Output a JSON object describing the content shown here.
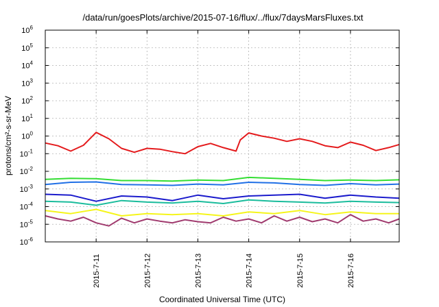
{
  "chart_data": {
    "type": "line",
    "title": "/data/run/goesPlots/archive/2015-07-16/flux/../flux/7daysMarsFluxes.txt",
    "xlabel": "Coordinated Universal Time (UTC)",
    "ylabel": "protons/cm²-s-sr-MeV",
    "x_domain": [
      "2015-07-10 00:00",
      "2015-07-16 23:00"
    ],
    "x_ticks": [
      "2015-7-11",
      "2015-7-12",
      "2015-7-13",
      "2015-7-14",
      "2015-7-15",
      "2015-7-16"
    ],
    "y_scale": "log",
    "ylim": [
      1e-06,
      1000000.0
    ],
    "y_ticks": [
      {
        "base": "10",
        "exp": "-6"
      },
      {
        "base": "10",
        "exp": "-5"
      },
      {
        "base": "10",
        "exp": "-4"
      },
      {
        "base": "10",
        "exp": "-3"
      },
      {
        "base": "10",
        "exp": "-2"
      },
      {
        "base": "10",
        "exp": "-1"
      },
      {
        "base": "10",
        "exp": "0"
      },
      {
        "base": "10",
        "exp": "1"
      },
      {
        "base": "10",
        "exp": "2"
      },
      {
        "base": "10",
        "exp": "3"
      },
      {
        "base": "10",
        "exp": "4"
      },
      {
        "base": "10",
        "exp": "5"
      },
      {
        "base": "10",
        "exp": "6"
      }
    ],
    "grid": true,
    "series": [
      {
        "color": "#e41a1c",
        "x": [
          "2015-07-10 00:00",
          "2015-07-10 06:00",
          "2015-07-10 12:00",
          "2015-07-10 18:00",
          "2015-07-11 00:00",
          "2015-07-11 06:00",
          "2015-07-11 12:00",
          "2015-07-11 18:00",
          "2015-07-12 00:00",
          "2015-07-12 06:00",
          "2015-07-12 12:00",
          "2015-07-12 18:00",
          "2015-07-13 00:00",
          "2015-07-13 06:00",
          "2015-07-13 12:00",
          "2015-07-13 18:00",
          "2015-07-13 20:00",
          "2015-07-14 00:00",
          "2015-07-14 06:00",
          "2015-07-14 12:00",
          "2015-07-14 18:00",
          "2015-07-15 00:00",
          "2015-07-15 06:00",
          "2015-07-15 12:00",
          "2015-07-15 18:00",
          "2015-07-16 00:00",
          "2015-07-16 06:00",
          "2015-07-16 12:00",
          "2015-07-16 18:00",
          "2015-07-16 23:00"
        ],
        "y": [
          0.4,
          0.28,
          0.14,
          0.3,
          1.6,
          0.7,
          0.2,
          0.12,
          0.2,
          0.18,
          0.13,
          0.1,
          0.25,
          0.38,
          0.22,
          0.14,
          0.6,
          1.5,
          1.0,
          0.75,
          0.5,
          0.7,
          0.5,
          0.28,
          0.22,
          0.45,
          0.3,
          0.15,
          0.22,
          0.33
        ]
      },
      {
        "color": "#33dd33",
        "x": [
          "2015-07-10 00:00",
          "2015-07-10 12:00",
          "2015-07-11 00:00",
          "2015-07-11 12:00",
          "2015-07-12 00:00",
          "2015-07-12 12:00",
          "2015-07-13 00:00",
          "2015-07-13 12:00",
          "2015-07-14 00:00",
          "2015-07-14 12:00",
          "2015-07-15 00:00",
          "2015-07-15 12:00",
          "2015-07-16 00:00",
          "2015-07-16 12:00",
          "2015-07-16 23:00"
        ],
        "y": [
          0.0035,
          0.004,
          0.0038,
          0.003,
          0.003,
          0.0028,
          0.0032,
          0.003,
          0.0045,
          0.004,
          0.0035,
          0.003,
          0.0032,
          0.003,
          0.0033
        ]
      },
      {
        "color": "#1f6fe6",
        "x": [
          "2015-07-10 00:00",
          "2015-07-10 12:00",
          "2015-07-11 00:00",
          "2015-07-11 12:00",
          "2015-07-12 00:00",
          "2015-07-12 12:00",
          "2015-07-13 00:00",
          "2015-07-13 12:00",
          "2015-07-14 00:00",
          "2015-07-14 12:00",
          "2015-07-15 00:00",
          "2015-07-15 12:00",
          "2015-07-16 00:00",
          "2015-07-16 12:00",
          "2015-07-16 23:00"
        ],
        "y": [
          0.0018,
          0.0024,
          0.0025,
          0.0018,
          0.0017,
          0.0016,
          0.0019,
          0.0017,
          0.0024,
          0.0022,
          0.0018,
          0.0016,
          0.002,
          0.0017,
          0.0019
        ]
      },
      {
        "color": "#1a1acc",
        "x": [
          "2015-07-10 00:00",
          "2015-07-10 12:00",
          "2015-07-11 00:00",
          "2015-07-11 12:00",
          "2015-07-12 00:00",
          "2015-07-12 12:00",
          "2015-07-13 00:00",
          "2015-07-13 12:00",
          "2015-07-14 00:00",
          "2015-07-14 12:00",
          "2015-07-15 00:00",
          "2015-07-15 12:00",
          "2015-07-16 00:00",
          "2015-07-16 12:00",
          "2015-07-16 23:00"
        ],
        "y": [
          0.0005,
          0.00045,
          0.0002,
          0.0004,
          0.00035,
          0.00022,
          0.00045,
          0.00028,
          0.0004,
          0.00045,
          0.0005,
          0.0003,
          0.00045,
          0.00035,
          0.0003
        ]
      },
      {
        "color": "#1abc9c",
        "x": [
          "2015-07-10 00:00",
          "2015-07-10 12:00",
          "2015-07-11 00:00",
          "2015-07-11 12:00",
          "2015-07-12 00:00",
          "2015-07-12 12:00",
          "2015-07-13 00:00",
          "2015-07-13 12:00",
          "2015-07-14 00:00",
          "2015-07-14 12:00",
          "2015-07-15 00:00",
          "2015-07-15 12:00",
          "2015-07-16 00:00",
          "2015-07-16 12:00",
          "2015-07-16 23:00"
        ],
        "y": [
          0.0002,
          0.00018,
          0.00012,
          0.00022,
          0.00018,
          0.00016,
          0.0002,
          0.00015,
          0.00024,
          0.0002,
          0.00018,
          0.00016,
          0.0002,
          0.00018,
          0.00017
        ]
      },
      {
        "color": "#f5f51a",
        "x": [
          "2015-07-10 00:00",
          "2015-07-10 12:00",
          "2015-07-11 00:00",
          "2015-07-11 12:00",
          "2015-07-12 00:00",
          "2015-07-12 12:00",
          "2015-07-13 00:00",
          "2015-07-13 12:00",
          "2015-07-14 00:00",
          "2015-07-14 12:00",
          "2015-07-15 00:00",
          "2015-07-15 12:00",
          "2015-07-16 00:00",
          "2015-07-16 12:00",
          "2015-07-16 23:00"
        ],
        "y": [
          6e-05,
          4e-05,
          7e-05,
          3e-05,
          4e-05,
          3.5e-05,
          4e-05,
          3e-05,
          5e-05,
          4e-05,
          6e-05,
          3.5e-05,
          5e-05,
          4e-05,
          4e-05
        ]
      },
      {
        "color": "#a03a6e",
        "x": [
          "2015-07-10 00:00",
          "2015-07-10 06:00",
          "2015-07-10 12:00",
          "2015-07-10 18:00",
          "2015-07-11 00:00",
          "2015-07-11 06:00",
          "2015-07-11 12:00",
          "2015-07-11 18:00",
          "2015-07-12 00:00",
          "2015-07-12 06:00",
          "2015-07-12 12:00",
          "2015-07-12 18:00",
          "2015-07-13 00:00",
          "2015-07-13 06:00",
          "2015-07-13 12:00",
          "2015-07-13 18:00",
          "2015-07-14 00:00",
          "2015-07-14 06:00",
          "2015-07-14 12:00",
          "2015-07-14 18:00",
          "2015-07-15 00:00",
          "2015-07-15 06:00",
          "2015-07-15 12:00",
          "2015-07-15 18:00",
          "2015-07-16 00:00",
          "2015-07-16 06:00",
          "2015-07-16 12:00",
          "2015-07-16 18:00",
          "2015-07-16 23:00"
        ],
        "y": [
          3e-05,
          2e-05,
          1.5e-05,
          2.5e-05,
          1.2e-05,
          8e-06,
          2.2e-05,
          1.2e-05,
          2e-05,
          1.5e-05,
          1.2e-05,
          1.8e-05,
          1.4e-05,
          1.2e-05,
          2.5e-05,
          1.5e-05,
          2e-05,
          1.2e-05,
          3e-05,
          1.5e-05,
          2.5e-05,
          1.4e-05,
          2e-05,
          1.2e-05,
          3.5e-05,
          1.5e-05,
          2e-05,
          1.2e-05,
          2e-05
        ]
      }
    ]
  }
}
